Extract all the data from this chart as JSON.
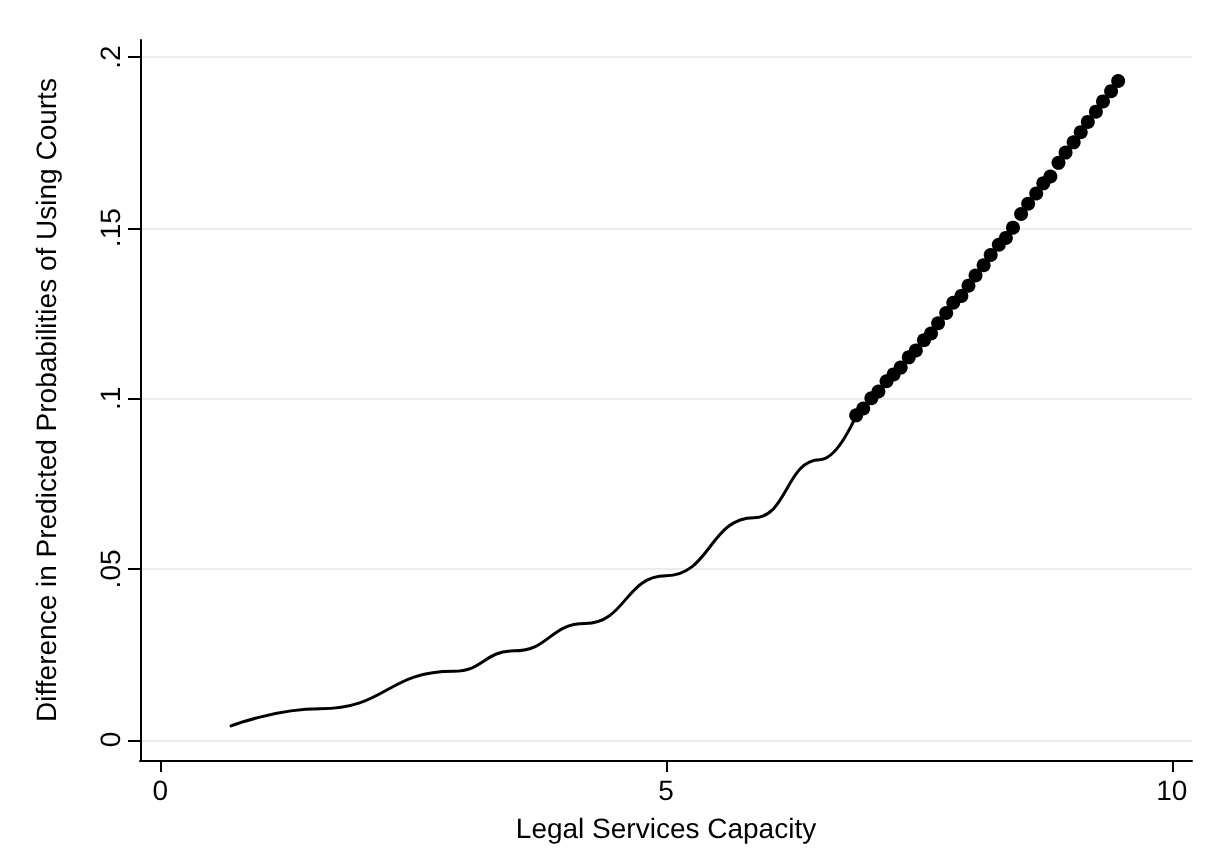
{
  "chart_data": {
    "type": "line",
    "xlabel": "Legal Services Capacity",
    "ylabel": "Difference in Predicted Probabilities of Using Courts",
    "xlim": [
      -0.2,
      10.2
    ],
    "ylim": [
      -0.006,
      0.205
    ],
    "xticks": [
      0,
      5,
      10
    ],
    "yticks": [
      0,
      {
        "value": 0.05,
        "label": ".05"
      },
      {
        "value": 0.1,
        "label": ".1"
      },
      {
        "value": 0.15,
        "label": ".15"
      },
      {
        "value": 0.2,
        "label": ".2"
      }
    ],
    "grid": "y",
    "series": [
      {
        "color": "#000000",
        "marker": "none",
        "x": [
          0.7,
          1.58,
          2.9,
          3.5,
          4.2,
          5.0,
          5.87,
          6.52,
          6.88
        ],
        "values": [
          0.004,
          0.009,
          0.02,
          0.026,
          0.034,
          0.048,
          0.065,
          0.082,
          0.095
        ]
      },
      {
        "type": "scatter",
        "color": "#000000",
        "marker": "circle",
        "x": [
          6.88,
          6.95,
          7.03,
          7.1,
          7.18,
          7.25,
          7.32,
          7.4,
          7.47,
          7.55,
          7.62,
          7.69,
          7.77,
          7.84,
          7.92,
          7.99,
          8.06,
          8.14,
          8.21,
          8.29,
          8.36,
          8.43,
          8.51,
          8.58,
          8.66,
          8.73,
          8.8,
          8.88,
          8.95,
          9.03,
          9.1,
          9.17,
          9.25,
          9.32,
          9.4,
          9.47
        ],
        "values": [
          0.095,
          0.097,
          0.1,
          0.102,
          0.105,
          0.107,
          0.109,
          0.112,
          0.114,
          0.117,
          0.119,
          0.122,
          0.125,
          0.128,
          0.13,
          0.133,
          0.136,
          0.139,
          0.142,
          0.145,
          0.147,
          0.15,
          0.154,
          0.157,
          0.16,
          0.163,
          0.165,
          0.169,
          0.172,
          0.175,
          0.178,
          0.181,
          0.184,
          0.187,
          0.19,
          0.193
        ]
      }
    ]
  }
}
